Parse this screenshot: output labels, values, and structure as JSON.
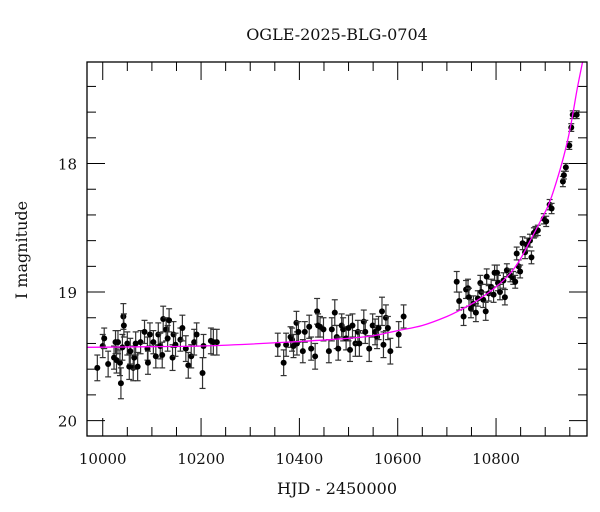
{
  "chart_data": {
    "type": "scatter",
    "title": "OGLE-2025-BLG-0704",
    "xlabel": "HJD - 2450000",
    "ylabel": "I magnitude",
    "xlim": [
      9968,
      10985
    ],
    "ylim": [
      20.12,
      17.21
    ],
    "y_inverted": true,
    "x_major_ticks": [
      10000,
      10200,
      10400,
      10600,
      10800
    ],
    "x_tick_labels": [
      "10000",
      "10200",
      "10400",
      "10600",
      "10800"
    ],
    "x_minor_step": 50,
    "y_major_ticks": [
      18,
      19,
      20
    ],
    "y_tick_labels": [
      "18",
      "19",
      "20"
    ],
    "y_minor_step": 0.2,
    "grid": false,
    "colors": {
      "points": "#000000",
      "errorbars": "#333333",
      "model": "#ff00ff",
      "frame": "#000000"
    },
    "series": [
      {
        "kind": "points-with-errorbars",
        "columns": [
          "hjd",
          "mag",
          "err"
        ],
        "points": [
          [
            9989,
            19.59,
            0.1
          ],
          [
            10000,
            19.42,
            0.09
          ],
          [
            10003,
            19.36,
            0.08
          ],
          [
            10011,
            19.56,
            0.1
          ],
          [
            10023,
            19.51,
            0.09
          ],
          [
            10026,
            19.39,
            0.09
          ],
          [
            10028,
            19.53,
            0.1
          ],
          [
            10031,
            19.39,
            0.09
          ],
          [
            10035,
            19.55,
            0.1
          ],
          [
            10037,
            19.71,
            0.12
          ],
          [
            10040,
            19.43,
            0.1
          ],
          [
            10042,
            19.19,
            0.1
          ],
          [
            10043,
            19.26,
            0.09
          ],
          [
            10050,
            19.4,
            0.09
          ],
          [
            10054,
            19.58,
            0.1
          ],
          [
            10056,
            19.46,
            0.1
          ],
          [
            10062,
            19.59,
            0.1
          ],
          [
            10064,
            19.51,
            0.09
          ],
          [
            10067,
            19.4,
            0.09
          ],
          [
            10071,
            19.58,
            0.11
          ],
          [
            10077,
            19.39,
            0.09
          ],
          [
            10085,
            19.31,
            0.09
          ],
          [
            10091,
            19.44,
            0.09
          ],
          [
            10092,
            19.55,
            0.09
          ],
          [
            10096,
            19.33,
            0.09
          ],
          [
            10103,
            19.39,
            0.09
          ],
          [
            10108,
            19.5,
            0.09
          ],
          [
            10113,
            19.33,
            0.09
          ],
          [
            10117,
            19.42,
            0.1
          ],
          [
            10121,
            19.49,
            0.1
          ],
          [
            10123,
            19.21,
            0.1
          ],
          [
            10129,
            19.29,
            0.09
          ],
          [
            10132,
            19.36,
            0.1
          ],
          [
            10135,
            19.22,
            0.09
          ],
          [
            10142,
            19.51,
            0.1
          ],
          [
            10144,
            19.33,
            0.1
          ],
          [
            10148,
            19.41,
            0.09
          ],
          [
            10158,
            19.37,
            0.09
          ],
          [
            10162,
            19.28,
            0.1
          ],
          [
            10169,
            19.44,
            0.1
          ],
          [
            10174,
            19.57,
            0.1
          ],
          [
            10180,
            19.5,
            0.09
          ],
          [
            10186,
            19.39,
            0.1
          ],
          [
            10191,
            19.33,
            0.09
          ],
          [
            10203,
            19.63,
            0.12
          ],
          [
            10205,
            19.42,
            0.09
          ],
          [
            10220,
            19.38,
            0.1
          ],
          [
            10225,
            19.39,
            0.1
          ],
          [
            10232,
            19.39,
            0.1
          ],
          [
            10356,
            19.41,
            0.09
          ],
          [
            10368,
            19.55,
            0.1
          ],
          [
            10373,
            19.41,
            0.09
          ],
          [
            10382,
            19.35,
            0.08
          ],
          [
            10385,
            19.37,
            0.09
          ],
          [
            10388,
            19.42,
            0.09
          ],
          [
            10394,
            19.24,
            0.09
          ],
          [
            10395,
            19.4,
            0.09
          ],
          [
            10398,
            19.31,
            0.08
          ],
          [
            10407,
            19.46,
            0.09
          ],
          [
            10411,
            19.31,
            0.08
          ],
          [
            10420,
            19.27,
            0.09
          ],
          [
            10424,
            19.44,
            0.09
          ],
          [
            10432,
            19.5,
            0.1
          ],
          [
            10436,
            19.15,
            0.1
          ],
          [
            10438,
            19.26,
            0.09
          ],
          [
            10442,
            19.27,
            0.08
          ],
          [
            10449,
            19.29,
            0.09
          ],
          [
            10460,
            19.46,
            0.09
          ],
          [
            10466,
            19.29,
            0.09
          ],
          [
            10472,
            19.16,
            0.1
          ],
          [
            10476,
            19.35,
            0.09
          ],
          [
            10479,
            19.44,
            0.09
          ],
          [
            10486,
            19.26,
            0.09
          ],
          [
            10489,
            19.29,
            0.09
          ],
          [
            10495,
            19.36,
            0.09
          ],
          [
            10500,
            19.28,
            0.1
          ],
          [
            10503,
            19.45,
            0.09
          ],
          [
            10508,
            19.26,
            0.09
          ],
          [
            10514,
            19.4,
            0.1
          ],
          [
            10519,
            19.31,
            0.09
          ],
          [
            10522,
            19.4,
            0.1
          ],
          [
            10531,
            19.23,
            0.09
          ],
          [
            10534,
            19.31,
            0.09
          ],
          [
            10542,
            19.44,
            0.1
          ],
          [
            10549,
            19.26,
            0.09
          ],
          [
            10554,
            19.31,
            0.1
          ],
          [
            10558,
            19.35,
            0.09
          ],
          [
            10561,
            19.28,
            0.09
          ],
          [
            10568,
            19.15,
            0.11
          ],
          [
            10571,
            19.41,
            0.1
          ],
          [
            10576,
            19.2,
            0.1
          ],
          [
            10580,
            19.28,
            0.09
          ],
          [
            10585,
            19.46,
            0.1
          ],
          [
            10602,
            19.33,
            0.1
          ],
          [
            10612,
            19.19,
            0.09
          ],
          [
            10720,
            18.92,
            0.08
          ],
          [
            10725,
            19.07,
            0.07
          ],
          [
            10734,
            19.19,
            0.07
          ],
          [
            10739,
            18.98,
            0.07
          ],
          [
            10743,
            18.97,
            0.07
          ],
          [
            10745,
            19.04,
            0.07
          ],
          [
            10749,
            19.13,
            0.07
          ],
          [
            10754,
            19.09,
            0.06
          ],
          [
            10759,
            19.16,
            0.07
          ],
          [
            10763,
            19.05,
            0.06
          ],
          [
            10768,
            18.93,
            0.06
          ],
          [
            10770,
            19.0,
            0.06
          ],
          [
            10774,
            19.06,
            0.06
          ],
          [
            10779,
            19.15,
            0.07
          ],
          [
            10781,
            18.88,
            0.06
          ],
          [
            10785,
            19.01,
            0.06
          ],
          [
            10790,
            18.96,
            0.06
          ],
          [
            10795,
            19.02,
            0.06
          ],
          [
            10797,
            18.85,
            0.06
          ],
          [
            10802,
            18.85,
            0.06
          ],
          [
            10804,
            18.93,
            0.06
          ],
          [
            10808,
            19.0,
            0.06
          ],
          [
            10815,
            18.91,
            0.06
          ],
          [
            10818,
            19.04,
            0.06
          ],
          [
            10822,
            18.83,
            0.05
          ],
          [
            10829,
            18.87,
            0.05
          ],
          [
            10835,
            18.89,
            0.05
          ],
          [
            10839,
            18.92,
            0.05
          ],
          [
            10842,
            18.7,
            0.05
          ],
          [
            10846,
            18.8,
            0.05
          ],
          [
            10849,
            18.84,
            0.05
          ],
          [
            10854,
            18.62,
            0.05
          ],
          [
            10859,
            18.69,
            0.05
          ],
          [
            10863,
            18.63,
            0.05
          ],
          [
            10869,
            18.6,
            0.05
          ],
          [
            10872,
            18.73,
            0.05
          ],
          [
            10877,
            18.54,
            0.04
          ],
          [
            10880,
            18.53,
            0.04
          ],
          [
            10885,
            18.52,
            0.04
          ],
          [
            10897,
            18.43,
            0.04
          ],
          [
            10902,
            18.45,
            0.04
          ],
          [
            10909,
            18.32,
            0.04
          ],
          [
            10913,
            18.35,
            0.04
          ],
          [
            10936,
            18.14,
            0.04
          ],
          [
            10938,
            18.09,
            0.03
          ],
          [
            10942,
            18.03,
            0.03
          ],
          [
            10949,
            17.86,
            0.03
          ],
          [
            10953,
            17.72,
            0.03
          ],
          [
            10956,
            17.62,
            0.03
          ],
          [
            10964,
            17.62,
            0.03
          ]
        ]
      },
      {
        "kind": "model-curve",
        "columns": [
          "hjd",
          "mag"
        ],
        "points": [
          [
            9968,
            19.43
          ],
          [
            10100,
            19.425
          ],
          [
            10200,
            19.42
          ],
          [
            10300,
            19.405
          ],
          [
            10400,
            19.385
          ],
          [
            10500,
            19.36
          ],
          [
            10550,
            19.34
          ],
          [
            10600,
            19.3
          ],
          [
            10650,
            19.26
          ],
          [
            10700,
            19.19
          ],
          [
            10732,
            19.13
          ],
          [
            10760,
            19.07
          ],
          [
            10800,
            18.96
          ],
          [
            10830,
            18.85
          ],
          [
            10850,
            18.74
          ],
          [
            10868,
            18.61
          ],
          [
            10890,
            18.45
          ],
          [
            10909,
            18.3
          ],
          [
            10930,
            18.05
          ],
          [
            10945,
            17.83
          ],
          [
            10955,
            17.64
          ],
          [
            10965,
            17.42
          ],
          [
            10976,
            17.21
          ]
        ]
      }
    ]
  }
}
